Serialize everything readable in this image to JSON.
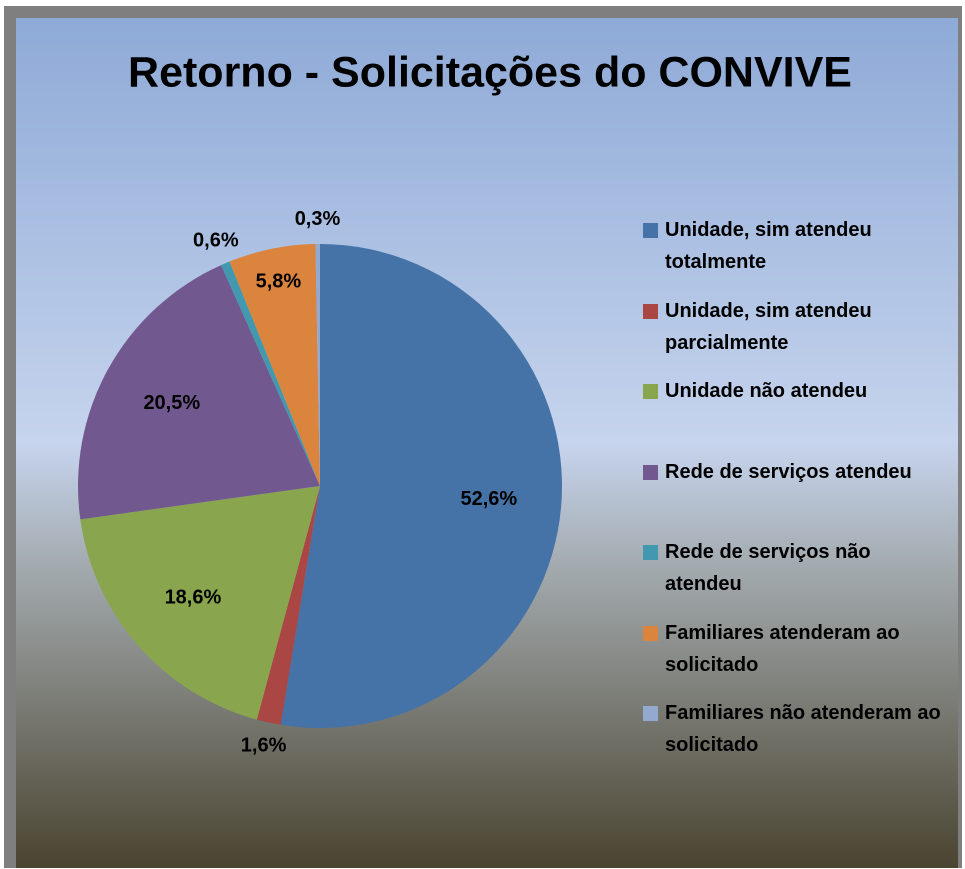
{
  "chart_data": {
    "type": "pie",
    "title": "Retorno - Solicitações do CONVIVE",
    "categories": [
      "Unidade, sim atendeu totalmente",
      "Unidade, sim atendeu parcialmente",
      "Unidade não atendeu",
      "Rede de serviços atendeu",
      "Rede de serviços não atendeu",
      "Familiares atenderam ao solicitado",
      "Familiares não atenderam ao solicitado"
    ],
    "values": [
      52.6,
      1.6,
      18.6,
      20.5,
      0.6,
      5.8,
      0.3
    ],
    "value_labels": [
      "52,6%",
      "1,6%",
      "18,6%",
      "20,5%",
      "0,6%",
      "5,8%",
      "0,3%"
    ],
    "colors": [
      "#4572a7",
      "#aa4643",
      "#89a54e",
      "#71588f",
      "#4198af",
      "#db843d",
      "#93a9cf"
    ],
    "legend": "right"
  }
}
